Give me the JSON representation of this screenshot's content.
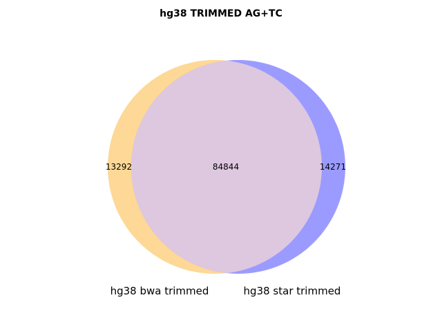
{
  "title": "hg38 TRIMMED AG+TC",
  "sets": [
    {
      "name": "hg38 bwa trimmed",
      "only": "13292",
      "color": "#fdd896"
    },
    {
      "name": "hg38 star trimmed",
      "only": "14271",
      "color": "#9b9bff"
    }
  ],
  "intersection": {
    "count": "84844",
    "color": "#dec8e0"
  }
}
